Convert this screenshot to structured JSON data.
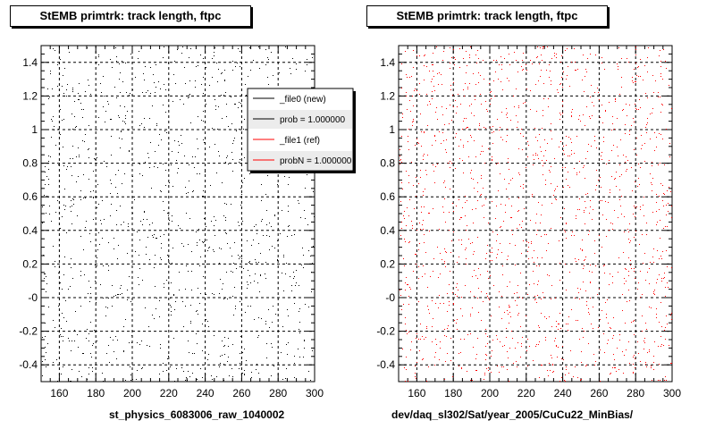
{
  "chart_data": [
    {
      "type": "scatter",
      "title": "StEMB primtrk: track length, ftpc",
      "xlabel": "st_physics_6083006_raw_1040002",
      "ylabel": "",
      "xlim": [
        150,
        300
      ],
      "ylim": [
        -0.5,
        1.5
      ],
      "x_ticks": [
        "160",
        "180",
        "200",
        "220",
        "240",
        "260",
        "280",
        "300"
      ],
      "y_ticks": [
        "-0.4",
        "-0.2",
        "-0",
        "0.2",
        "0.4",
        "0.6",
        "0.8",
        "1",
        "1.2",
        "1.4"
      ],
      "grid": true,
      "series": [
        {
          "name": "_file0 (new)",
          "color": "#000000",
          "points": 1100
        }
      ],
      "legend": {
        "placement": "top-right",
        "entries": [
          {
            "label": "_file0 (new)",
            "color": "#000000"
          },
          {
            "label": "prob = 1.000000",
            "color": "#000000"
          },
          {
            "label": "_file1 (ref)",
            "color": "#ff0000"
          },
          {
            "label": "probN = 1.000000",
            "color": "#ff0000"
          }
        ]
      }
    },
    {
      "type": "scatter",
      "title": "StEMB primtrk: track length, ftpc",
      "xlabel": "dev/daq_sl302/Sat/year_2005/CuCu22_MinBias/",
      "ylabel": "",
      "xlim": [
        150,
        300
      ],
      "ylim": [
        -0.5,
        1.5
      ],
      "x_ticks": [
        "160",
        "180",
        "200",
        "220",
        "240",
        "260",
        "280",
        "300"
      ],
      "y_ticks": [
        "-0.4",
        "-0.2",
        "-0",
        "0.2",
        "0.4",
        "0.6",
        "0.8",
        "1",
        "1.2",
        "1.4"
      ],
      "grid": true,
      "series": [
        {
          "name": "_file1 (ref)",
          "color": "#ff0000",
          "points": 1500
        }
      ]
    }
  ]
}
